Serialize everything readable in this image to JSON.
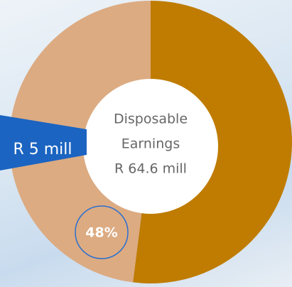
{
  "chart_data": {
    "type": "donut",
    "values": [
      52,
      48
    ],
    "value_labels": [
      null,
      "48%"
    ],
    "colors": [
      "#bf7c00",
      "#dcab82"
    ],
    "center_text": [
      "Disposable",
      "Earnings",
      "R 64.6 mill"
    ],
    "annotation": "R 5 mill"
  }
}
